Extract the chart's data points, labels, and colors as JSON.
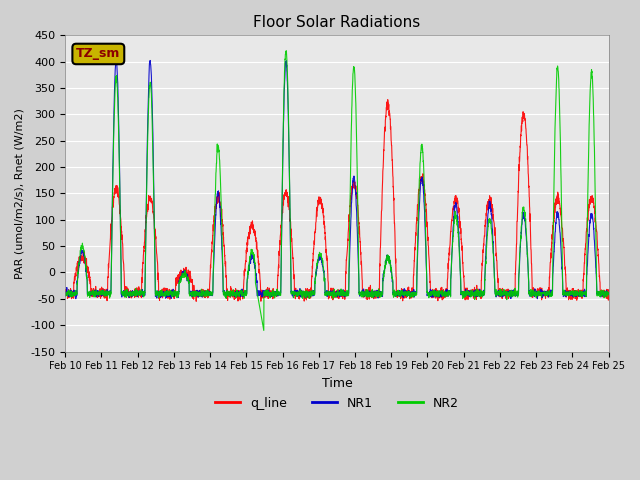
{
  "title": "Floor Solar Radiations",
  "xlabel": "Time",
  "ylabel": "PAR (umol/m2/s), Rnet (W/m2)",
  "ylim": [
    -150,
    450
  ],
  "yticks": [
    -150,
    -100,
    -50,
    0,
    50,
    100,
    150,
    200,
    250,
    300,
    350,
    400,
    450
  ],
  "xlim": [
    0,
    15
  ],
  "xtick_positions": [
    0,
    1,
    2,
    3,
    4,
    5,
    6,
    7,
    8,
    9,
    10,
    11,
    12,
    13,
    14,
    15
  ],
  "xtick_labels": [
    "Feb 10",
    "Feb 11",
    "Feb 12",
    "Feb 13",
    "Feb 14",
    "Feb 15",
    "Feb 16",
    "Feb 17",
    "Feb 18",
    "Feb 19",
    "Feb 20",
    "Feb 21",
    "Feb 22",
    "Feb 23",
    "Feb 24",
    "Feb 25"
  ],
  "legend_label": "TZ_sm",
  "legend_color": "#c8b400",
  "legend_text_color": "#8b0000",
  "line_colors": {
    "q_line": "#ff0000",
    "NR1": "#0000cc",
    "NR2": "#00cc00"
  },
  "background_color": "#e8e8e8",
  "grid_color": "#ffffff"
}
